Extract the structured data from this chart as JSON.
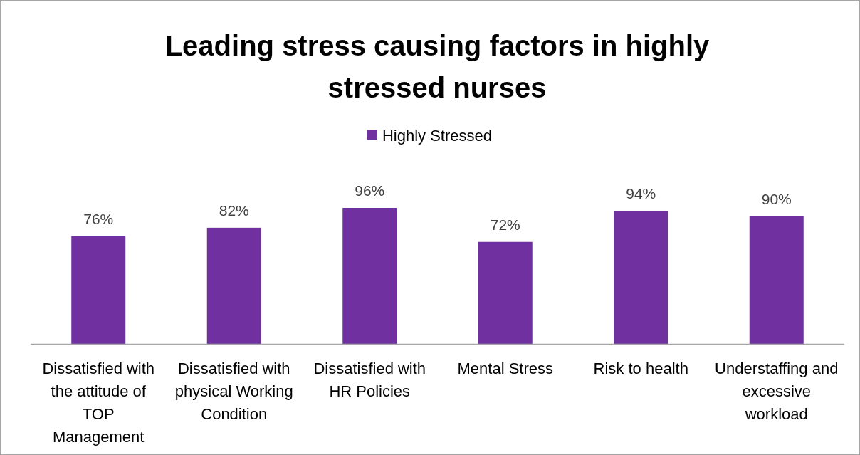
{
  "chart_data": {
    "type": "bar",
    "title": "Leading  stress causing factors in highly stressed nurses",
    "categories": [
      "Dissatisfied with the attitude of TOP Management",
      "Dissatisfied with physical Working Condition",
      "Dissatisfied with HR Policies",
      "Mental Stress",
      "Risk to health",
      "Understaffing and excessive workload"
    ],
    "series": [
      {
        "name": "Highly Stressed",
        "color": "#7030a0",
        "values": [
          76,
          82,
          96,
          72,
          94,
          90
        ],
        "value_labels": [
          "76%",
          "82%",
          "96%",
          "72%",
          "94%",
          "90%"
        ]
      }
    ],
    "legend": "top",
    "grid": false
  }
}
